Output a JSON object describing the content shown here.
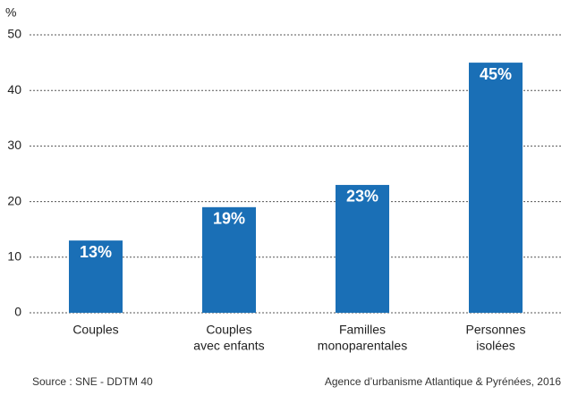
{
  "chart_data": {
    "type": "bar",
    "y_label": "%",
    "categories": [
      [
        "Couples"
      ],
      [
        "Couples",
        "avec enfants"
      ],
      [
        "Familles",
        "monoparentales"
      ],
      [
        "Personnes",
        "isolées"
      ]
    ],
    "values": [
      13,
      19,
      23,
      45
    ],
    "value_labels": [
      "13%",
      "19%",
      "23%",
      "45%"
    ],
    "color": "#1a6fb6",
    "ylim": [
      0,
      50
    ],
    "yticks": [
      0,
      10,
      20,
      30,
      40,
      50
    ],
    "grid": true,
    "source": "Source : SNE - DDTM 40",
    "credit": "Agence d’urbanisme Atlantique & Pyrénées, 2016"
  }
}
